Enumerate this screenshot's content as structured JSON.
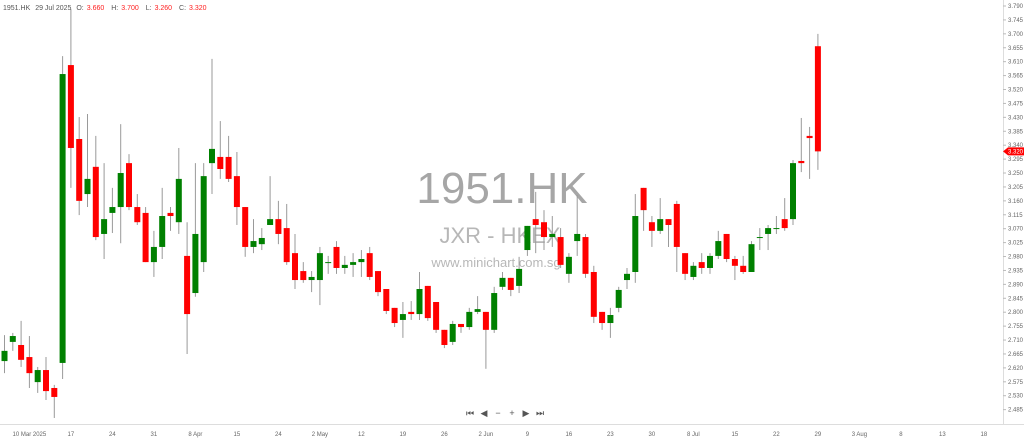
{
  "header": {
    "symbol": "1951.HK",
    "date": "29 Jul 2025",
    "open_label": "O:",
    "open": "3.660",
    "high_label": "H:",
    "high": "3.700",
    "low_label": "L:",
    "low": "3.260",
    "close_label": "C:",
    "close": "3.320"
  },
  "watermark": {
    "symbol": "1951.HK",
    "exchange": "JXR - HKEX",
    "site": "www.minichart.com.sg"
  },
  "nav": {
    "first": "⏮",
    "prev": "◀",
    "zoom_out": "−",
    "zoom_in": "+",
    "next": "▶",
    "last": "⏭"
  },
  "colors": {
    "up": "#008000",
    "down": "#ff0000",
    "wick": "#9a9a9a",
    "last_price_marker": "#ff0000"
  },
  "chart_data": {
    "type": "candlestick",
    "title": "",
    "last_price": "3.320",
    "ylim": [
      2.44,
      3.81
    ],
    "y_ticks": [
      "3.790",
      "3.745",
      "3.700",
      "3.655",
      "3.610",
      "3.565",
      "3.520",
      "3.475",
      "3.430",
      "3.385",
      "3.340",
      "3.295",
      "3.250",
      "3.205",
      "3.160",
      "3.115",
      "3.070",
      "3.025",
      "2.980",
      "2.935",
      "2.890",
      "2.845",
      "2.800",
      "2.755",
      "2.710",
      "2.665",
      "2.620",
      "2.575",
      "2.530",
      "2.485"
    ],
    "x_ticks": [
      "10 Mar 2025",
      "17",
      "24",
      "31",
      "8 Apr",
      "15",
      "24",
      "2 May",
      "12",
      "19",
      "26",
      "2 Jun",
      "9",
      "16",
      "23",
      "30",
      "8 Jul",
      "15",
      "22",
      "29",
      "3 Aug",
      "8",
      "13",
      "18"
    ],
    "ohlc_fields": [
      "open",
      "high",
      "low",
      "close"
    ],
    "candles": [
      [
        2.642,
        2.726,
        2.603,
        2.675
      ],
      [
        2.704,
        2.733,
        2.675,
        2.723
      ],
      [
        2.694,
        2.772,
        2.623,
        2.646
      ],
      [
        2.655,
        2.723,
        2.555,
        2.603
      ],
      [
        2.574,
        2.623,
        2.539,
        2.613
      ],
      [
        2.613,
        2.655,
        2.516,
        2.545
      ],
      [
        2.555,
        2.565,
        2.458,
        2.526
      ],
      [
        2.636,
        3.628,
        2.584,
        3.57
      ],
      [
        3.599,
        3.78,
        3.202,
        3.331
      ],
      [
        3.36,
        3.431,
        3.114,
        3.16
      ],
      [
        3.182,
        3.441,
        3.14,
        3.231
      ],
      [
        3.27,
        3.37,
        3.033,
        3.043
      ],
      [
        3.053,
        3.282,
        2.972,
        3.101
      ],
      [
        3.121,
        3.202,
        3.056,
        3.14
      ],
      [
        3.14,
        3.408,
        3.023,
        3.25
      ],
      [
        3.282,
        3.311,
        3.13,
        3.14
      ],
      [
        3.14,
        3.182,
        3.082,
        3.091
      ],
      [
        3.121,
        3.14,
        2.962,
        2.962
      ],
      [
        2.962,
        3.063,
        2.914,
        3.011
      ],
      [
        3.011,
        3.202,
        2.972,
        3.111
      ],
      [
        3.121,
        3.14,
        3.063,
        3.111
      ],
      [
        3.091,
        3.331,
        3.053,
        3.231
      ],
      [
        2.982,
        3.091,
        2.665,
        2.794
      ],
      [
        2.862,
        3.282,
        2.85,
        3.053
      ],
      [
        2.962,
        3.282,
        2.93,
        3.24
      ],
      [
        3.282,
        3.619,
        3.182,
        3.328
      ],
      [
        3.302,
        3.418,
        3.231,
        3.263
      ],
      [
        3.302,
        3.37,
        3.221,
        3.231
      ],
      [
        3.24,
        3.318,
        3.082,
        3.14
      ],
      [
        3.14,
        3.14,
        2.979,
        3.011
      ],
      [
        3.011,
        3.101,
        2.991,
        3.03
      ],
      [
        3.02,
        3.072,
        3.001,
        3.04
      ],
      [
        3.082,
        3.24,
        3.082,
        3.101
      ],
      [
        3.101,
        3.16,
        3.02,
        3.053
      ],
      [
        3.072,
        3.15,
        2.953,
        2.962
      ],
      [
        2.991,
        3.053,
        2.875,
        2.904
      ],
      [
        2.933,
        2.962,
        2.895,
        2.904
      ],
      [
        2.904,
        2.933,
        2.865,
        2.914
      ],
      [
        2.904,
        3.011,
        2.823,
        2.991
      ],
      [
        2.962,
        2.982,
        2.924,
        2.962
      ],
      [
        3.011,
        3.03,
        2.924,
        2.943
      ],
      [
        2.943,
        2.982,
        2.924,
        2.953
      ],
      [
        2.953,
        2.991,
        2.914,
        2.962
      ],
      [
        2.962,
        3.001,
        2.914,
        2.972
      ],
      [
        2.991,
        3.011,
        2.904,
        2.914
      ],
      [
        2.933,
        2.933,
        2.852,
        2.865
      ],
      [
        2.875,
        2.875,
        2.794,
        2.804
      ],
      [
        2.814,
        2.814,
        2.752,
        2.765
      ],
      [
        2.775,
        2.833,
        2.717,
        2.794
      ],
      [
        2.801,
        2.836,
        2.775,
        2.794
      ],
      [
        2.794,
        2.93,
        2.775,
        2.875
      ],
      [
        2.885,
        2.885,
        2.772,
        2.781
      ],
      [
        2.833,
        2.833,
        2.733,
        2.743
      ],
      [
        2.743,
        2.743,
        2.684,
        2.694
      ],
      [
        2.704,
        2.772,
        2.694,
        2.762
      ],
      [
        2.762,
        2.762,
        2.733,
        2.752
      ],
      [
        2.752,
        2.814,
        2.743,
        2.801
      ],
      [
        2.801,
        2.852,
        2.794,
        2.81
      ],
      [
        2.801,
        2.801,
        2.617,
        2.743
      ],
      [
        2.743,
        2.882,
        2.733,
        2.862
      ],
      [
        2.882,
        2.93,
        2.872,
        2.911
      ],
      [
        2.911,
        2.911,
        2.852,
        2.872
      ],
      [
        2.885,
        2.979,
        2.862,
        2.94
      ],
      [
        3.001,
        3.079,
        2.982,
        3.079
      ],
      [
        3.101,
        3.189,
        2.991,
        3.082
      ],
      [
        3.091,
        3.13,
        3.001,
        3.043
      ],
      [
        3.043,
        3.111,
        3.011,
        3.053
      ],
      [
        3.043,
        3.072,
        2.943,
        2.953
      ],
      [
        2.924,
        2.991,
        2.895,
        2.979
      ],
      [
        3.03,
        3.179,
        2.982,
        3.053
      ],
      [
        3.043,
        3.053,
        2.911,
        2.924
      ],
      [
        2.93,
        2.95,
        2.765,
        2.785
      ],
      [
        2.801,
        2.801,
        2.743,
        2.765
      ],
      [
        2.765,
        2.814,
        2.717,
        2.791
      ],
      [
        2.814,
        2.882,
        2.8,
        2.872
      ],
      [
        2.904,
        2.943,
        2.875,
        2.924
      ],
      [
        2.93,
        3.182,
        2.895,
        3.111
      ],
      [
        3.202,
        3.202,
        3.063,
        3.13
      ],
      [
        3.091,
        3.111,
        3.011,
        3.063
      ],
      [
        3.063,
        3.169,
        3.053,
        3.101
      ],
      [
        3.101,
        3.101,
        3.011,
        3.082
      ],
      [
        3.15,
        3.16,
        2.93,
        3.011
      ],
      [
        2.991,
        2.991,
        2.904,
        2.924
      ],
      [
        2.914,
        2.962,
        2.904,
        2.95
      ],
      [
        2.962,
        2.991,
        2.924,
        2.943
      ],
      [
        2.943,
        2.991,
        2.924,
        2.982
      ],
      [
        2.982,
        3.063,
        2.972,
        3.03
      ],
      [
        3.053,
        3.053,
        2.962,
        2.972
      ],
      [
        2.972,
        2.982,
        2.904,
        2.95
      ],
      [
        2.95,
        2.982,
        2.924,
        2.93
      ],
      [
        2.93,
        3.03,
        2.93,
        3.02
      ],
      [
        3.043,
        3.072,
        3.001,
        3.043
      ],
      [
        3.053,
        3.082,
        3.001,
        3.072
      ],
      [
        3.072,
        3.111,
        3.053,
        3.072
      ],
      [
        3.101,
        3.169,
        3.063,
        3.072
      ],
      [
        3.101,
        3.292,
        3.082,
        3.282
      ],
      [
        3.289,
        3.428,
        3.253,
        3.282
      ],
      [
        3.37,
        3.399,
        3.231,
        3.363
      ],
      [
        3.66,
        3.7,
        3.26,
        3.32
      ]
    ]
  }
}
